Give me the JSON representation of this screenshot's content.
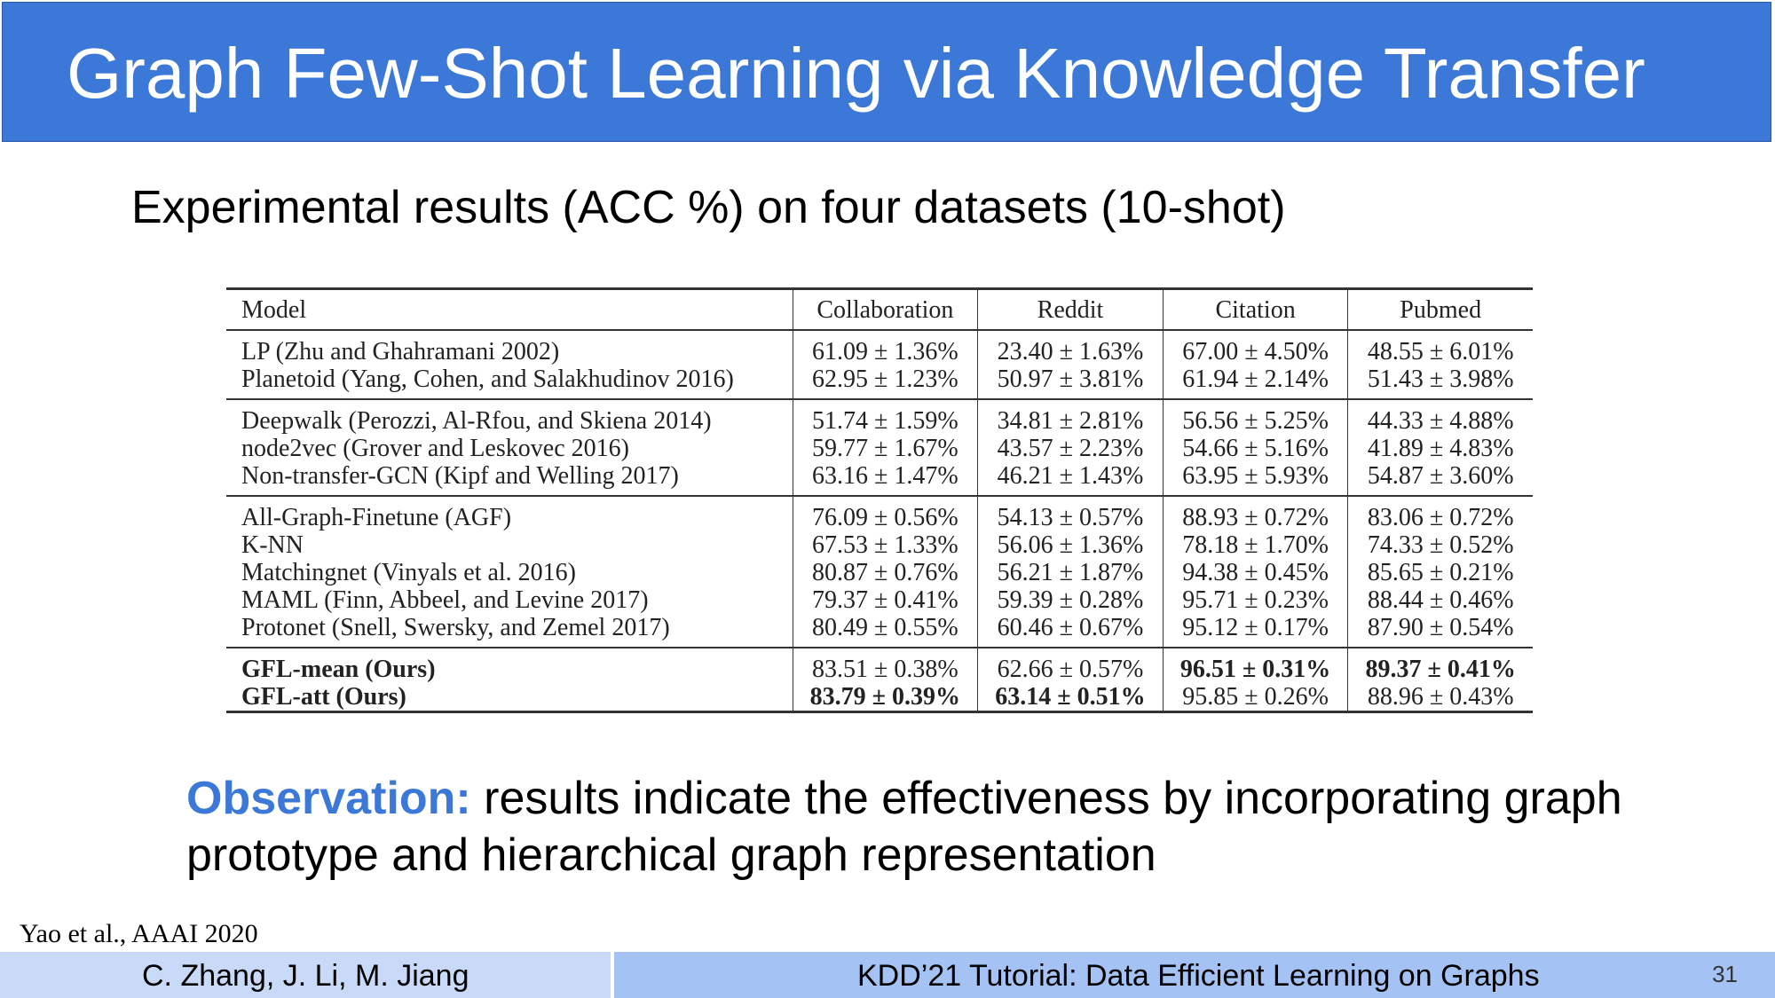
{
  "header": {
    "title": "Graph Few-Shot Learning via Knowledge Transfer"
  },
  "subtitle": "Experimental results (ACC %) on four datasets (10-shot)",
  "table": {
    "columns": [
      "Model",
      "Collaboration",
      "Reddit",
      "Citation",
      "Pubmed"
    ],
    "groups": [
      [
        [
          "LP (Zhu and Ghahramani 2002)",
          "61.09 ± 1.36%",
          "23.40 ± 1.63%",
          "67.00 ± 4.50%",
          "48.55 ± 6.01%"
        ],
        [
          "Planetoid (Yang, Cohen, and Salakhudinov 2016)",
          "62.95 ± 1.23%",
          "50.97 ± 3.81%",
          "61.94 ± 2.14%",
          "51.43 ± 3.98%"
        ]
      ],
      [
        [
          "Deepwalk (Perozzi, Al-Rfou, and Skiena 2014)",
          "51.74 ± 1.59%",
          "34.81 ± 2.81%",
          "56.56 ± 5.25%",
          "44.33 ± 4.88%"
        ],
        [
          "node2vec (Grover and Leskovec 2016)",
          "59.77 ± 1.67%",
          "43.57 ± 2.23%",
          "54.66 ± 5.16%",
          "41.89 ± 4.83%"
        ],
        [
          "Non-transfer-GCN (Kipf and Welling 2017)",
          "63.16 ± 1.47%",
          "46.21 ± 1.43%",
          "63.95 ± 5.93%",
          "54.87 ± 3.60%"
        ]
      ],
      [
        [
          "All-Graph-Finetune (AGF)",
          "76.09 ± 0.56%",
          "54.13 ± 0.57%",
          "88.93 ± 0.72%",
          "83.06 ± 0.72%"
        ],
        [
          "K-NN",
          "67.53 ± 1.33%",
          "56.06 ± 1.36%",
          "78.18 ± 1.70%",
          "74.33 ± 0.52%"
        ],
        [
          "Matchingnet (Vinyals et al. 2016)",
          "80.87 ± 0.76%",
          "56.21 ± 1.87%",
          "94.38 ± 0.45%",
          "85.65 ± 0.21%"
        ],
        [
          "MAML (Finn, Abbeel, and Levine 2017)",
          "79.37 ± 0.41%",
          "59.39 ± 0.28%",
          "95.71 ± 0.23%",
          "88.44 ± 0.46%"
        ],
        [
          "Protonet (Snell, Swersky, and Zemel 2017)",
          "80.49 ± 0.55%",
          "60.46 ± 0.67%",
          "95.12 ± 0.17%",
          "87.90 ± 0.54%"
        ]
      ],
      [
        [
          "GFL-mean (Ours)",
          "83.51 ± 0.38%",
          "62.66 ± 0.57%",
          "96.51 ± 0.31%",
          "89.37 ± 0.41%"
        ],
        [
          "GFL-att (Ours)",
          "83.79 ± 0.39%",
          "63.14 ± 0.51%",
          "95.85 ± 0.26%",
          "88.96 ± 0.43%"
        ]
      ]
    ]
  },
  "observation": {
    "label": "Observation:",
    "text": " results indicate the effectiveness by incorporating graph prototype and hierarchical graph representation"
  },
  "citation": "Yao et al., AAAI 2020",
  "footer": {
    "authors": "C. Zhang, J. Li, M. Jiang",
    "event": "KDD’21 Tutorial: Data Efficient Learning on Graphs",
    "page": "31"
  },
  "colors": {
    "title_bar": "#3c78d8",
    "observation_label": "#3c78d8",
    "footer_left": "#c9daf8",
    "footer_right": "#a4c2f4"
  }
}
